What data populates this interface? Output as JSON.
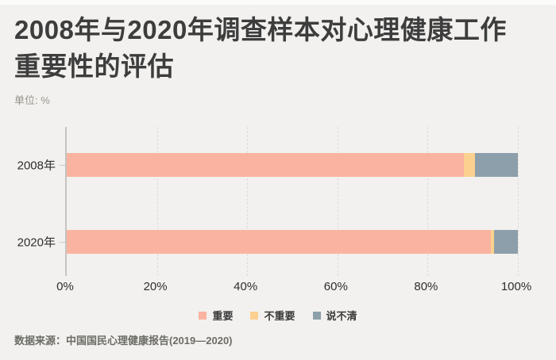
{
  "header": {
    "title_line1": "2008年与2020年调查样本对心理健康工作",
    "title_line2": "重要性的评估",
    "unit_label": "单位: %"
  },
  "chart_data": {
    "type": "bar",
    "orientation": "horizontal",
    "stacked": true,
    "unit": "%",
    "categories": [
      "2008年",
      "2020年"
    ],
    "series": [
      {
        "name": "重要",
        "color": "#fab3a0",
        "values": [
          88.0,
          94.0
        ]
      },
      {
        "name": "不重要",
        "color": "#fcd18f",
        "values": [
          2.5,
          0.8
        ]
      },
      {
        "name": "说不清",
        "color": "#8c9fab",
        "values": [
          9.5,
          5.2
        ]
      }
    ],
    "xlim": [
      0,
      100
    ],
    "x_ticks": [
      0,
      20,
      40,
      60,
      80,
      100
    ],
    "x_tick_labels": [
      "0%",
      "20%",
      "40%",
      "60%",
      "80%",
      "100%"
    ],
    "grid": "vertical-dashed",
    "legend_position": "bottom"
  },
  "footer": {
    "source": "数据来源：中国国民心理健康报告(2019—2020)"
  },
  "colors": {
    "background": "#f2f1ef",
    "title": "#3d3d3d",
    "subtitle": "#95958d",
    "axis_line": "#c4c4c0",
    "gridline": "#dcdcd9",
    "tick_label": "#2e2e2e",
    "legend_label": "#3a3a3a",
    "source_text": "#6c6c66"
  }
}
